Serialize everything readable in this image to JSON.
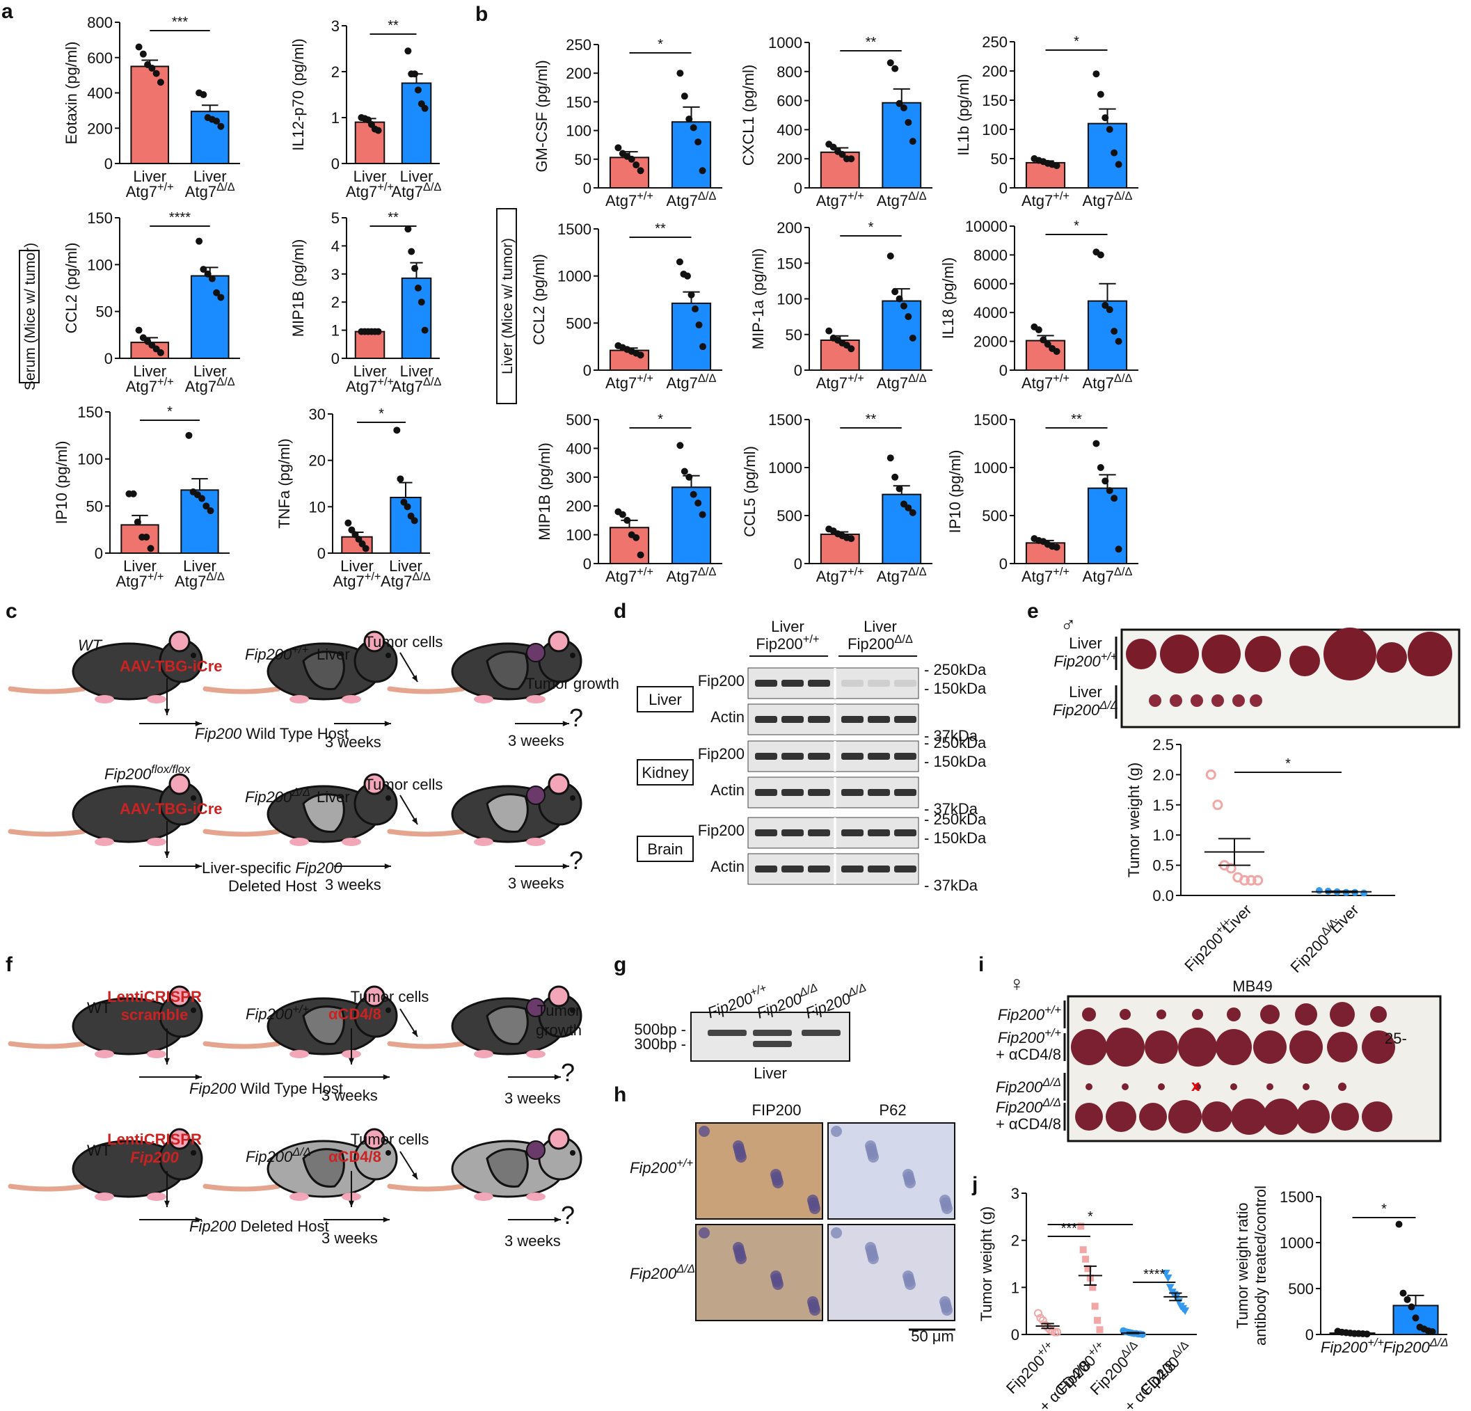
{
  "colors": {
    "control": "#f0746e",
    "mutant": "#1a8cff",
    "control_light": "#f2a6a6",
    "mutant_light": "#3399ee",
    "mouse_dark": "#3a3a3a",
    "mouse_light": "#a8a8a8",
    "red_text": "#cc2222"
  },
  "panels": {
    "a": "a",
    "b": "b",
    "c": "c",
    "d": "d",
    "e": "e",
    "f": "f",
    "g": "g",
    "h": "h",
    "i": "i",
    "j": "j"
  },
  "boxed_labels": {
    "serum": "Serum (Mice w/ tumor)",
    "liver": "Liver (Mice w/ tumor)"
  },
  "chart_data": [
    {
      "id": "a1",
      "type": "bar",
      "ylabel": "Eotaxin (pg/ml)",
      "ylim": [
        0,
        800
      ],
      "yticks": [
        0,
        200,
        400,
        600,
        800
      ],
      "categories": [
        [
          "Liver",
          "Atg7+/+"
        ],
        [
          "Liver",
          "Atg7Δ/Δ"
        ]
      ],
      "values": [
        550,
        295
      ],
      "sem": [
        35,
        35
      ],
      "points": [
        [
          660,
          620,
          560,
          540,
          510,
          460
        ],
        [
          400,
          390,
          260,
          250,
          240,
          210
        ]
      ],
      "sig": "***"
    },
    {
      "id": "a2",
      "type": "bar",
      "ylabel": "IL12-p70 (pg/ml)",
      "ylim": [
        0,
        3
      ],
      "yticks": [
        0,
        1,
        2,
        3
      ],
      "categories": [
        [
          "Liver",
          "Atg7+/+"
        ],
        [
          "Liver",
          "Atg7Δ/Δ"
        ]
      ],
      "values": [
        0.9,
        1.75
      ],
      "sem": [
        0.08,
        0.2
      ],
      "points": [
        [
          1.0,
          0.98,
          0.95,
          0.85,
          0.75,
          0.72
        ],
        [
          2.45,
          1.95,
          1.95,
          1.6,
          1.3,
          1.2
        ]
      ],
      "sig": "**"
    },
    {
      "id": "a3",
      "type": "bar",
      "ylabel": "CCL2 (pg/ml)",
      "ylim": [
        0,
        150
      ],
      "yticks": [
        0,
        50,
        100,
        150
      ],
      "categories": [
        [
          "Liver",
          "Atg7+/+"
        ],
        [
          "Liver",
          "Atg7Δ/Δ"
        ]
      ],
      "values": [
        17,
        88
      ],
      "sem": [
        5,
        9
      ],
      "points": [
        [
          30,
          22,
          18,
          14,
          10,
          6
        ],
        [
          125,
          95,
          90,
          85,
          70,
          65
        ]
      ],
      "sig": "****"
    },
    {
      "id": "a4",
      "type": "bar",
      "ylabel": "MIP1B (pg/ml)",
      "ylim": [
        0,
        5
      ],
      "yticks": [
        0,
        1,
        2,
        3,
        4,
        5
      ],
      "categories": [
        [
          "Liver",
          "Atg7+/+"
        ],
        [
          "Liver",
          "Atg7Δ/Δ"
        ]
      ],
      "values": [
        0.95,
        2.85
      ],
      "sem": [
        0.02,
        0.55
      ],
      "points": [
        [
          0.95,
          0.95,
          0.95,
          0.95,
          0.95,
          0.95
        ],
        [
          4.6,
          3.8,
          3.2,
          2.5,
          2.0,
          1.0
        ]
      ],
      "sig": "**"
    },
    {
      "id": "a5",
      "type": "bar",
      "ylabel": "IP10 (pg/ml)",
      "ylim": [
        0,
        150
      ],
      "yticks": [
        0,
        50,
        100,
        150
      ],
      "categories": [
        [
          "Liver",
          "Atg7+/+"
        ],
        [
          "Liver",
          "Atg7Δ/Δ"
        ]
      ],
      "values": [
        30,
        67
      ],
      "sem": [
        10,
        12
      ],
      "points": [
        [
          63,
          63,
          33,
          17,
          17,
          5
        ],
        [
          125,
          65,
          62,
          58,
          50,
          45
        ]
      ],
      "sig": "*"
    },
    {
      "id": "a6",
      "type": "bar",
      "ylabel": "TNFa (pg/ml)",
      "ylim": [
        0,
        30
      ],
      "yticks": [
        0,
        10,
        20,
        30
      ],
      "categories": [
        [
          "Liver",
          "Atg7+/+"
        ],
        [
          "Liver",
          "Atg7Δ/Δ"
        ]
      ],
      "values": [
        3.5,
        12
      ],
      "sem": [
        1,
        3.2
      ],
      "points": [
        [
          6.5,
          5,
          4,
          3,
          2,
          1
        ],
        [
          26.5,
          16,
          11,
          10,
          8,
          7
        ]
      ],
      "sig": "*"
    },
    {
      "id": "b1",
      "type": "bar",
      "ylabel": "GM-CSF (pg/ml)",
      "ylim": [
        0,
        250
      ],
      "yticks": [
        0,
        50,
        100,
        150,
        200,
        250
      ],
      "categories": [
        [
          "Atg7+/+"
        ],
        [
          "Atg7Δ/Δ"
        ]
      ],
      "values": [
        53,
        115
      ],
      "sem": [
        10,
        26
      ],
      "points": [
        [
          70,
          60,
          55,
          50,
          40,
          30
        ],
        [
          200,
          160,
          120,
          105,
          80,
          30
        ]
      ],
      "sig": "*"
    },
    {
      "id": "b2",
      "type": "bar",
      "ylabel": "CXCL1 (pg/ml)",
      "ylim": [
        0,
        1000
      ],
      "yticks": [
        0,
        200,
        400,
        600,
        800,
        1000
      ],
      "categories": [
        [
          "Atg7+/+"
        ],
        [
          "Atg7Δ/Δ"
        ]
      ],
      "values": [
        245,
        585
      ],
      "sem": [
        30,
        95
      ],
      "points": [
        [
          300,
          280,
          250,
          230,
          200,
          200
        ],
        [
          860,
          820,
          580,
          550,
          450,
          320
        ]
      ],
      "sig": "**"
    },
    {
      "id": "b3",
      "type": "bar",
      "ylabel": "IL1b (pg/ml)",
      "ylim": [
        0,
        250
      ],
      "yticks": [
        0,
        50,
        100,
        150,
        200,
        250
      ],
      "categories": [
        [
          "Atg7+/+"
        ],
        [
          "Atg7Δ/Δ"
        ]
      ],
      "values": [
        43,
        110
      ],
      "sem": [
        3,
        25
      ],
      "points": [
        [
          50,
          47,
          45,
          42,
          40,
          38
        ],
        [
          195,
          160,
          120,
          100,
          60,
          40
        ]
      ],
      "sig": "*"
    },
    {
      "id": "b4",
      "type": "bar",
      "ylabel": "CCL2 (pg/ml)",
      "ylim": [
        0,
        1500
      ],
      "yticks": [
        0,
        500,
        1000,
        1500
      ],
      "categories": [
        [
          "Atg7+/+"
        ],
        [
          "Atg7Δ/Δ"
        ]
      ],
      "values": [
        210,
        710
      ],
      "sem": [
        25,
        120
      ],
      "points": [
        [
          260,
          240,
          220,
          200,
          180,
          160
        ],
        [
          1150,
          1020,
          1000,
          800,
          650,
          480,
          250
        ]
      ],
      "sig": "**"
    },
    {
      "id": "b5",
      "type": "bar",
      "ylabel": "MIP-1a (pg/ml)",
      "ylim": [
        0,
        200
      ],
      "yticks": [
        0,
        50,
        100,
        150,
        200
      ],
      "categories": [
        [
          "Atg7+/+"
        ],
        [
          "Atg7Δ/Δ"
        ]
      ],
      "values": [
        42,
        97
      ],
      "sem": [
        6,
        17
      ],
      "points": [
        [
          55,
          45,
          42,
          38,
          35,
          30
        ],
        [
          160,
          110,
          100,
          90,
          75,
          45
        ]
      ],
      "sig": "*"
    },
    {
      "id": "b6",
      "type": "bar",
      "ylabel": "IL18 (pg/ml)",
      "ylim": [
        0,
        10000
      ],
      "yticks": [
        0,
        2000,
        4000,
        6000,
        8000,
        10000
      ],
      "categories": [
        [
          "Atg7+/+"
        ],
        [
          "Atg7Δ/Δ"
        ]
      ],
      "values": [
        2050,
        4800
      ],
      "sem": [
        350,
        1200
      ],
      "points": [
        [
          3000,
          2800,
          2100,
          1800,
          1500,
          1300
        ],
        [
          8200,
          8000,
          4500,
          4200,
          2700,
          2000
        ]
      ],
      "sig": "*"
    },
    {
      "id": "b7",
      "type": "bar",
      "ylabel": "MIP1B (pg/ml)",
      "ylim": [
        0,
        500
      ],
      "yticks": [
        0,
        100,
        200,
        300,
        400,
        500
      ],
      "categories": [
        [
          "Atg7+/+"
        ],
        [
          "Atg7Δ/Δ"
        ]
      ],
      "values": [
        125,
        265
      ],
      "sem": [
        25,
        40
      ],
      "points": [
        [
          180,
          170,
          150,
          100,
          90,
          30
        ],
        [
          410,
          320,
          300,
          240,
          210,
          170
        ]
      ],
      "sig": "*"
    },
    {
      "id": "b8",
      "type": "bar",
      "ylabel": "CCL5 (pg/ml)",
      "ylim": [
        0,
        1500
      ],
      "yticks": [
        0,
        500,
        1000,
        1500
      ],
      "categories": [
        [
          "Atg7+/+"
        ],
        [
          "Atg7Δ/Δ"
        ]
      ],
      "values": [
        305,
        720
      ],
      "sem": [
        25,
        90
      ],
      "points": [
        [
          360,
          340,
          310,
          290,
          270,
          260
        ],
        [
          1100,
          900,
          780,
          620,
          580,
          530
        ]
      ],
      "sig": "**"
    },
    {
      "id": "b9",
      "type": "bar",
      "ylabel": "IP10 (pg/ml)",
      "ylim": [
        0,
        1500
      ],
      "yticks": [
        0,
        500,
        1000,
        1500
      ],
      "categories": [
        [
          "Atg7+/+"
        ],
        [
          "Atg7Δ/Δ"
        ]
      ],
      "values": [
        215,
        785
      ],
      "sem": [
        25,
        140
      ],
      "points": [
        [
          260,
          240,
          230,
          200,
          180,
          170
        ],
        [
          1250,
          1000,
          860,
          760,
          680,
          150
        ]
      ],
      "sig": "**"
    },
    {
      "id": "e",
      "type": "scatter",
      "ylabel": "Tumor weight (g)",
      "ylim": [
        0,
        2.5
      ],
      "yticks": [
        0.0,
        0.5,
        1.0,
        1.5,
        2.0,
        2.5
      ],
      "categories": [
        [
          "Liver",
          "Fip200+/+"
        ],
        [
          "Liver",
          "Fip200Δ/Δ"
        ]
      ],
      "means": [
        0.72,
        0.06
      ],
      "sem": [
        0.22,
        0.01
      ],
      "points": [
        [
          2.0,
          1.5,
          0.5,
          0.45,
          0.3,
          0.25,
          0.25,
          0.25
        ],
        [
          0.08,
          0.07,
          0.06,
          0.05,
          0.05,
          0.04
        ]
      ],
      "sig": "*"
    },
    {
      "id": "j1",
      "type": "scatter",
      "ylabel": "Tumor weight (g)",
      "ylim": [
        0,
        3
      ],
      "yticks": [
        0,
        1,
        2,
        3
      ],
      "categories": [
        "Fip200+/+",
        "Fip200+/+\n+ αCD4/8",
        "Fip200Δ/Δ",
        "Fip200Δ/Δ\n+ αCD4/8"
      ],
      "means": [
        0.18,
        1.25,
        0.03,
        0.8
      ],
      "sem": [
        0.05,
        0.2,
        0.01,
        0.08
      ],
      "points": [
        [
          0.45,
          0.35,
          0.3,
          0.2,
          0.15,
          0.1,
          0.08,
          0.05,
          0.05
        ],
        [
          2.3,
          1.8,
          1.6,
          1.4,
          1.2,
          1.0,
          0.6,
          0.3,
          0.1
        ],
        [
          0.08,
          0.06,
          0.05,
          0.04,
          0.03,
          0.02,
          0.02,
          0.01,
          0.01,
          0.0
        ],
        [
          1.3,
          1.2,
          1.0,
          0.9,
          0.85,
          0.8,
          0.7,
          0.6,
          0.55,
          0.5
        ]
      ],
      "sig_pairs": [
        [
          "***",
          0,
          1
        ],
        [
          "*",
          0,
          2
        ],
        [
          "****",
          2,
          3
        ]
      ]
    },
    {
      "id": "j2",
      "type": "bar",
      "ylabel": "Tumor weight ratio\nantibody treated/control",
      "ylim": [
        0,
        1500
      ],
      "yticks": [
        0,
        500,
        1000,
        1500
      ],
      "categories": [
        "Fip200+/+",
        "Fip200Δ/Δ"
      ],
      "values": [
        15,
        315
      ],
      "sem": [
        5,
        110
      ],
      "points": [
        [
          35,
          25,
          20,
          15,
          10,
          10,
          8,
          5
        ],
        [
          1200,
          450,
          380,
          300,
          180,
          80,
          60,
          40,
          30
        ]
      ],
      "sig": "*"
    }
  ],
  "schematic_c": {
    "row1": {
      "host": "WT",
      "virus": "AAV-TBG-iCre",
      "genotype": "Fip200+/+",
      "genotype_suffix": "Liver",
      "tumor": "Tumor cells",
      "weeks1": "3 weeks",
      "weeks2": "3 weeks",
      "growth": "Tumor growth",
      "q": "?",
      "caption": "Fip200 Wild Type Host"
    },
    "row2": {
      "host": "Fip200flox/flox",
      "virus": "AAV-TBG-iCre",
      "genotype": "Fip200Δ/Δ",
      "genotype_suffix": "Liver",
      "tumor": "Tumor cells",
      "weeks1": "3 weeks",
      "weeks2": "3 weeks",
      "q": "?",
      "caption1": "Liver-specific Fip200",
      "caption2": "Deleted Host"
    }
  },
  "schematic_f": {
    "row1": {
      "host": "WT",
      "virus1": "LentiCRISPR",
      "virus2": "scramble",
      "genotype": "Fip200+/+",
      "antibody": "αCD4/8",
      "tumor": "Tumor cells",
      "weeks1": "3 weeks",
      "weeks2": "3 weeks",
      "growth1": "Tumor",
      "growth2": "growth",
      "q": "?",
      "caption": "Fip200 Wild Type Host"
    },
    "row2": {
      "host": "WT",
      "virus1": "LentiCRISPR",
      "virus2": "Fip200",
      "genotype": "Fip200Δ/Δ",
      "antibody": "αCD4/8",
      "tumor": "Tumor cells",
      "weeks1": "3 weeks",
      "weeks2": "3 weeks",
      "q": "?",
      "caption": "Fip200 Deleted Host"
    }
  },
  "blot_d": {
    "col1": [
      "Liver",
      "Fip200+/+"
    ],
    "col2": [
      "Liver",
      "Fip200Δ/Δ"
    ],
    "tissues": [
      "Liver",
      "Kidney",
      "Brain"
    ],
    "rows": [
      "Fip200",
      "Actin"
    ],
    "markers": [
      "250kDa",
      "150kDa",
      "37kDa"
    ]
  },
  "photo_e": {
    "sex": "♂",
    "row1": [
      "Liver",
      "Fip200+/+"
    ],
    "row2": [
      "Liver",
      "Fip200Δ/Δ"
    ]
  },
  "gel_g": {
    "lanes": [
      "Fip200+/+",
      "Fip200Δ/Δ",
      "Fip200Δ/Δ"
    ],
    "markers": [
      "500bp",
      "300bp"
    ],
    "caption": "Liver"
  },
  "ihc_h": {
    "cols": [
      "FIP200",
      "P62"
    ],
    "rows": [
      "Fip200+/+",
      "Fip200Δ/Δ"
    ],
    "scale": "50 μm"
  },
  "photo_i": {
    "sex": "♀",
    "title": "MB49",
    "rows": [
      [
        "Fip200+/+"
      ],
      [
        "Fip200+/+",
        "+ αCD4/8"
      ],
      [
        "Fip200Δ/Δ"
      ],
      [
        "Fip200Δ/Δ",
        "+ αCD4/8"
      ]
    ],
    "ruler": "25",
    "x_mark": "x"
  }
}
